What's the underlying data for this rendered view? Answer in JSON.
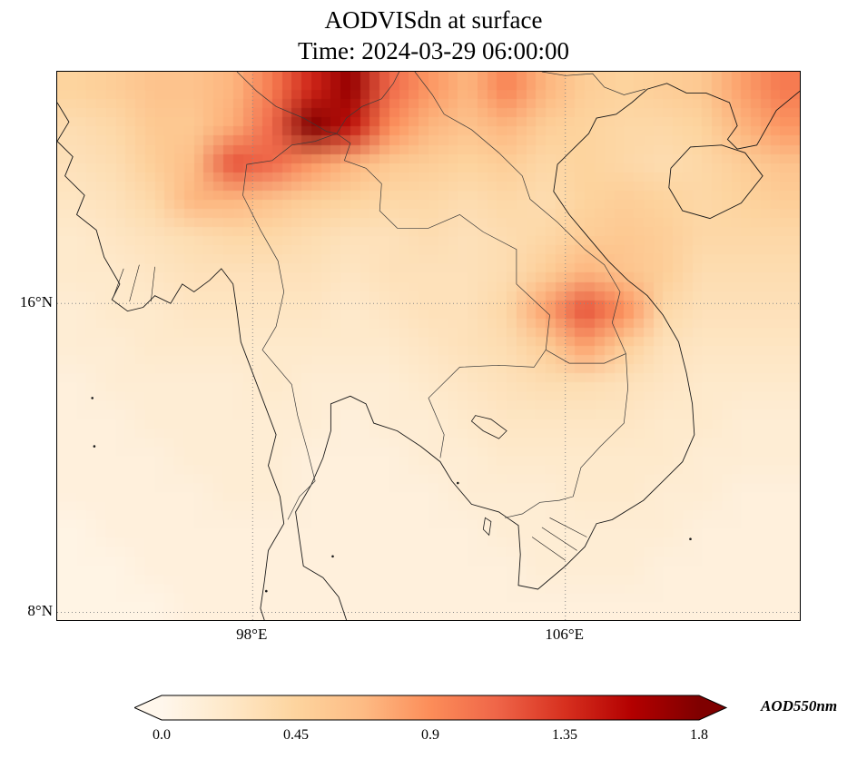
{
  "chart_data": {
    "type": "heatmap",
    "title": "AODVISdn at surface",
    "subtitle": "Time: 2024-03-29 06:00:00",
    "variable": "AOD at 550 nm",
    "extent": {
      "lon_min": 93,
      "lon_max": 112,
      "lat_min": 7.8,
      "lat_max": 22
    },
    "xticks": [
      {
        "lon": 98,
        "label": "98°E"
      },
      {
        "lon": 106,
        "label": "106°E"
      }
    ],
    "yticks": [
      {
        "lat": 16,
        "label": "16°N"
      },
      {
        "lat": 8,
        "label": "8°N"
      }
    ],
    "colorbar": {
      "label": "AOD550nm",
      "tick_labels": [
        "0.0",
        "0.45",
        "0.9",
        "1.35",
        "1.8"
      ],
      "tick_values": [
        0.0,
        0.45,
        0.9,
        1.35,
        1.8
      ],
      "vmin": 0.0,
      "vmax": 1.8,
      "extend": "both",
      "colormap": "OrRd",
      "colors": [
        "#fff7ec",
        "#fee8c8",
        "#fdd49e",
        "#fdbb84",
        "#fc8d59",
        "#ef6548",
        "#d7301f",
        "#b30000",
        "#7f0000"
      ]
    },
    "grid": {
      "lons": [
        93,
        94,
        95,
        96,
        97,
        98,
        99,
        100,
        101,
        102,
        103,
        104,
        105,
        106,
        107,
        108,
        109,
        110,
        111
      ],
      "lats": [
        21.5,
        20.5,
        19.5,
        18.5,
        17.5,
        16.5,
        15.5,
        14.5,
        13.5,
        12.5,
        11.5,
        10.5,
        9.5,
        8.5,
        7.5
      ],
      "values": [
        [
          0.45,
          0.5,
          0.6,
          0.6,
          0.7,
          1.0,
          1.4,
          1.7,
          1.1,
          0.85,
          0.7,
          0.95,
          0.7,
          0.5,
          0.45,
          0.5,
          0.55,
          0.8,
          1.0
        ],
        [
          0.35,
          0.4,
          0.55,
          0.55,
          0.75,
          1.1,
          1.8,
          1.5,
          0.9,
          0.7,
          0.6,
          0.7,
          0.5,
          0.45,
          0.4,
          0.4,
          0.45,
          0.7,
          0.85
        ],
        [
          0.3,
          0.35,
          0.5,
          0.65,
          1.2,
          1.1,
          0.85,
          0.7,
          0.55,
          0.5,
          0.45,
          0.5,
          0.4,
          0.45,
          0.4,
          0.35,
          0.4,
          0.5,
          0.6
        ],
        [
          0.25,
          0.3,
          0.4,
          0.7,
          0.7,
          0.6,
          0.5,
          0.45,
          0.4,
          0.4,
          0.35,
          0.4,
          0.35,
          0.45,
          0.5,
          0.45,
          0.4,
          0.45,
          0.5
        ],
        [
          0.2,
          0.25,
          0.3,
          0.35,
          0.4,
          0.4,
          0.35,
          0.3,
          0.3,
          0.35,
          0.3,
          0.35,
          0.4,
          0.5,
          0.55,
          0.5,
          0.4,
          0.4,
          0.4
        ],
        [
          0.2,
          0.2,
          0.25,
          0.3,
          0.3,
          0.3,
          0.3,
          0.25,
          0.3,
          0.3,
          0.3,
          0.35,
          0.5,
          0.7,
          0.6,
          0.5,
          0.35,
          0.35,
          0.35
        ],
        [
          0.15,
          0.2,
          0.2,
          0.25,
          0.25,
          0.25,
          0.25,
          0.2,
          0.25,
          0.3,
          0.3,
          0.4,
          0.8,
          1.2,
          0.9,
          0.4,
          0.3,
          0.3,
          0.3
        ],
        [
          0.15,
          0.15,
          0.2,
          0.2,
          0.2,
          0.2,
          0.2,
          0.2,
          0.2,
          0.25,
          0.3,
          0.35,
          0.5,
          0.8,
          0.5,
          0.3,
          0.25,
          0.25,
          0.25
        ],
        [
          0.1,
          0.15,
          0.15,
          0.15,
          0.15,
          0.2,
          0.15,
          0.15,
          0.15,
          0.2,
          0.25,
          0.3,
          0.35,
          0.35,
          0.3,
          0.25,
          0.2,
          0.2,
          0.2
        ],
        [
          0.1,
          0.1,
          0.15,
          0.15,
          0.15,
          0.15,
          0.15,
          0.1,
          0.15,
          0.15,
          0.2,
          0.25,
          0.25,
          0.25,
          0.25,
          0.2,
          0.2,
          0.15,
          0.15
        ],
        [
          0.1,
          0.1,
          0.1,
          0.15,
          0.15,
          0.15,
          0.1,
          0.1,
          0.1,
          0.15,
          0.15,
          0.2,
          0.2,
          0.2,
          0.2,
          0.2,
          0.15,
          0.15,
          0.15
        ],
        [
          0.1,
          0.1,
          0.1,
          0.1,
          0.15,
          0.15,
          0.1,
          0.1,
          0.1,
          0.1,
          0.15,
          0.15,
          0.15,
          0.2,
          0.2,
          0.15,
          0.15,
          0.1,
          0.1
        ],
        [
          0.05,
          0.1,
          0.1,
          0.1,
          0.1,
          0.1,
          0.1,
          0.1,
          0.1,
          0.1,
          0.1,
          0.15,
          0.15,
          0.15,
          0.15,
          0.15,
          0.1,
          0.1,
          0.1
        ],
        [
          0.05,
          0.05,
          0.1,
          0.1,
          0.1,
          0.1,
          0.1,
          0.1,
          0.1,
          0.1,
          0.1,
          0.1,
          0.15,
          0.15,
          0.15,
          0.1,
          0.1,
          0.1,
          0.1
        ],
        [
          0.05,
          0.05,
          0.05,
          0.1,
          0.1,
          0.1,
          0.1,
          0.1,
          0.1,
          0.1,
          0.1,
          0.1,
          0.1,
          0.1,
          0.1,
          0.1,
          0.1,
          0.1,
          0.1
        ]
      ]
    },
    "map_overlay": {
      "coastlines": [
        [
          [
            93.0,
            21.2
          ],
          [
            93.3,
            20.7
          ],
          [
            93.0,
            20.2
          ],
          [
            93.4,
            19.8
          ],
          [
            93.2,
            19.3
          ],
          [
            93.7,
            18.8
          ],
          [
            93.5,
            18.3
          ],
          [
            94.0,
            17.9
          ],
          [
            94.2,
            17.2
          ],
          [
            94.6,
            16.5
          ],
          [
            94.4,
            16.1
          ],
          [
            94.8,
            15.8
          ],
          [
            95.2,
            15.9
          ],
          [
            95.5,
            16.2
          ],
          [
            95.9,
            16.0
          ],
          [
            96.2,
            16.5
          ],
          [
            96.5,
            16.3
          ],
          [
            96.9,
            16.6
          ],
          [
            97.2,
            16.9
          ],
          [
            97.5,
            16.5
          ],
          [
            97.6,
            15.8
          ],
          [
            97.7,
            15.0
          ],
          [
            98.0,
            14.2
          ],
          [
            98.3,
            13.4
          ],
          [
            98.6,
            12.6
          ],
          [
            98.4,
            11.8
          ],
          [
            98.7,
            11.0
          ],
          [
            98.8,
            10.3
          ],
          [
            98.4,
            9.6
          ],
          [
            98.3,
            8.8
          ],
          [
            98.2,
            8.1
          ],
          [
            98.3,
            7.8
          ]
        ],
        [
          [
            100.4,
            7.8
          ],
          [
            100.2,
            8.4
          ],
          [
            99.8,
            8.9
          ],
          [
            99.3,
            9.2
          ],
          [
            99.2,
            9.9
          ],
          [
            99.1,
            10.6
          ],
          [
            99.5,
            11.3
          ],
          [
            99.8,
            12.0
          ],
          [
            100.0,
            12.7
          ],
          [
            100.0,
            13.4
          ],
          [
            100.5,
            13.6
          ],
          [
            100.9,
            13.4
          ],
          [
            101.1,
            12.9
          ],
          [
            101.7,
            12.7
          ],
          [
            102.3,
            12.3
          ],
          [
            102.8,
            11.9
          ],
          [
            103.1,
            11.4
          ],
          [
            103.6,
            10.8
          ],
          [
            104.3,
            10.6
          ],
          [
            104.8,
            10.25
          ],
          [
            104.85,
            9.5
          ],
          [
            104.8,
            8.7
          ],
          [
            105.3,
            8.6
          ],
          [
            106.0,
            9.2
          ],
          [
            106.5,
            9.7
          ],
          [
            106.8,
            10.3
          ],
          [
            107.2,
            10.4
          ],
          [
            108.0,
            10.9
          ],
          [
            108.5,
            11.4
          ],
          [
            109.0,
            11.9
          ],
          [
            109.3,
            12.6
          ],
          [
            109.25,
            13.4
          ],
          [
            109.1,
            14.2
          ],
          [
            108.9,
            15.0
          ],
          [
            108.5,
            15.7
          ],
          [
            108.1,
            16.2
          ],
          [
            107.6,
            16.6
          ],
          [
            107.1,
            17.1
          ],
          [
            106.6,
            17.7
          ],
          [
            106.1,
            18.3
          ],
          [
            105.7,
            18.9
          ],
          [
            105.8,
            19.6
          ],
          [
            106.2,
            20.0
          ],
          [
            106.6,
            20.4
          ],
          [
            106.8,
            20.8
          ],
          [
            107.3,
            20.9
          ],
          [
            107.7,
            21.2
          ],
          [
            108.1,
            21.55
          ],
          [
            108.6,
            21.7
          ],
          [
            109.1,
            21.45
          ],
          [
            109.6,
            21.45
          ],
          [
            110.2,
            21.2
          ],
          [
            110.4,
            20.6
          ],
          [
            110.15,
            20.25
          ],
          [
            110.4,
            20.0
          ],
          [
            110.9,
            20.1
          ],
          [
            111.4,
            21.0
          ],
          [
            112.0,
            21.5
          ]
        ],
        [
          [
            108.7,
            19.5
          ],
          [
            109.2,
            20.05
          ],
          [
            110.0,
            20.1
          ],
          [
            110.6,
            19.9
          ],
          [
            111.05,
            19.3
          ],
          [
            110.5,
            18.6
          ],
          [
            109.7,
            18.2
          ],
          [
            109.0,
            18.4
          ],
          [
            108.65,
            19.0
          ],
          [
            108.7,
            19.5
          ]
        ]
      ],
      "borders": [
        [
          [
            97.6,
            22.0
          ],
          [
            98.1,
            21.5
          ],
          [
            98.6,
            21.1
          ],
          [
            99.3,
            20.8
          ],
          [
            99.9,
            20.45
          ],
          [
            100.15,
            20.4
          ]
        ],
        [
          [
            100.15,
            20.4
          ],
          [
            100.4,
            20.8
          ],
          [
            100.8,
            21.1
          ],
          [
            101.3,
            21.3
          ],
          [
            101.6,
            21.7
          ],
          [
            101.75,
            22.0
          ]
        ],
        [
          [
            100.15,
            20.4
          ],
          [
            99.6,
            20.2
          ],
          [
            99.0,
            20.1
          ],
          [
            98.5,
            19.7
          ],
          [
            97.85,
            19.6
          ],
          [
            97.75,
            18.8
          ],
          [
            98.2,
            17.9
          ],
          [
            98.65,
            17.1
          ],
          [
            98.8,
            16.3
          ],
          [
            98.6,
            15.4
          ],
          [
            98.25,
            14.8
          ],
          [
            99.0,
            13.9
          ],
          [
            99.15,
            13.1
          ],
          [
            99.4,
            12.2
          ],
          [
            99.6,
            11.4
          ],
          [
            99.2,
            11.0
          ],
          [
            98.9,
            10.4
          ]
        ],
        [
          [
            100.15,
            20.4
          ],
          [
            100.5,
            20.15
          ],
          [
            100.35,
            19.7
          ],
          [
            100.9,
            19.5
          ],
          [
            101.3,
            19.1
          ],
          [
            101.25,
            18.4
          ],
          [
            101.7,
            17.95
          ],
          [
            102.5,
            17.95
          ],
          [
            103.3,
            18.3
          ],
          [
            103.9,
            17.85
          ],
          [
            104.75,
            17.4
          ],
          [
            104.75,
            16.5
          ],
          [
            105.6,
            15.7
          ],
          [
            105.5,
            14.8
          ]
        ],
        [
          [
            105.5,
            14.8
          ],
          [
            105.2,
            14.35
          ],
          [
            104.3,
            14.4
          ],
          [
            103.3,
            14.35
          ],
          [
            102.5,
            13.55
          ],
          [
            102.9,
            12.6
          ],
          [
            102.8,
            12.0
          ]
        ],
        [
          [
            102.15,
            22.0
          ],
          [
            102.6,
            21.4
          ],
          [
            102.9,
            20.9
          ],
          [
            103.6,
            20.5
          ],
          [
            104.3,
            19.9
          ],
          [
            104.9,
            19.3
          ],
          [
            105.1,
            18.7
          ],
          [
            105.8,
            18.1
          ],
          [
            106.5,
            17.4
          ],
          [
            107.0,
            17.0
          ],
          [
            107.4,
            16.3
          ],
          [
            107.2,
            15.5
          ],
          [
            107.55,
            14.7
          ]
        ],
        [
          [
            107.55,
            14.7
          ],
          [
            107.6,
            13.8
          ],
          [
            107.5,
            12.9
          ],
          [
            106.9,
            12.3
          ],
          [
            106.4,
            11.75
          ],
          [
            106.2,
            11.0
          ],
          [
            105.85,
            10.9
          ],
          [
            105.35,
            10.85
          ],
          [
            104.9,
            10.55
          ],
          [
            104.45,
            10.45
          ]
        ],
        [
          [
            105.5,
            14.8
          ],
          [
            106.1,
            14.45
          ],
          [
            107.0,
            14.45
          ],
          [
            107.55,
            14.7
          ]
        ],
        [
          [
            105.4,
            22.0
          ],
          [
            106.0,
            21.9
          ],
          [
            106.7,
            21.95
          ],
          [
            107.0,
            21.6
          ],
          [
            107.5,
            21.4
          ],
          [
            108.05,
            21.55
          ]
        ]
      ],
      "lakes": [
        [
          [
            103.7,
            13.1
          ],
          [
            104.1,
            13.0
          ],
          [
            104.5,
            12.7
          ],
          [
            104.3,
            12.5
          ],
          [
            103.9,
            12.7
          ],
          [
            103.6,
            12.95
          ]
        ],
        [
          [
            103.95,
            10.45
          ],
          [
            104.1,
            10.35
          ],
          [
            104.05,
            10.0
          ],
          [
            103.9,
            10.15
          ]
        ]
      ],
      "rivers": [
        [
          [
            105.4,
            10.2
          ],
          [
            106.3,
            9.6
          ]
        ],
        [
          [
            105.6,
            10.45
          ],
          [
            106.55,
            9.95
          ]
        ],
        [
          [
            105.15,
            9.95
          ],
          [
            106.0,
            9.35
          ]
        ],
        [
          [
            95.1,
            17.0
          ],
          [
            94.85,
            16.05
          ]
        ],
        [
          [
            95.5,
            16.95
          ],
          [
            95.4,
            16.05
          ]
        ],
        [
          [
            94.7,
            16.9
          ],
          [
            94.45,
            16.2
          ]
        ]
      ],
      "islands": [
        [
          93.9,
          13.55
        ],
        [
          93.95,
          12.3
        ],
        [
          98.35,
          8.55
        ],
        [
          100.05,
          9.45
        ],
        [
          103.25,
          11.35
        ],
        [
          109.2,
          9.9
        ]
      ]
    }
  }
}
